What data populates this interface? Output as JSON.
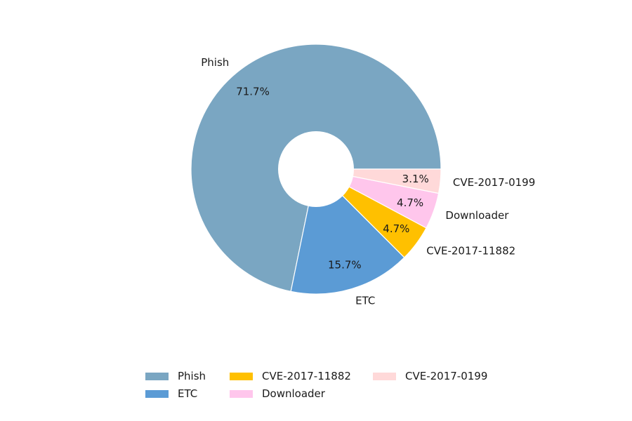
{
  "chart_data": {
    "type": "pie",
    "donut": true,
    "title": "",
    "slices": [
      {
        "label": "Phish",
        "value": 71.7,
        "pct_label": "71.7%",
        "color": "#7aa6c2"
      },
      {
        "label": "ETC",
        "value": 15.7,
        "pct_label": "15.7%",
        "color": "#5b9bd5"
      },
      {
        "label": "CVE-2017-11882",
        "value": 4.7,
        "pct_label": "4.7%",
        "color": "#ffc000"
      },
      {
        "label": "Downloader",
        "value": 4.7,
        "pct_label": "4.7%",
        "color": "#ffc6ec"
      },
      {
        "label": "CVE-2017-0199",
        "value": 3.1,
        "pct_label": "3.1%",
        "color": "#ffd9d9"
      }
    ],
    "start_angle_deg": 0,
    "direction": "counterclockwise",
    "legend": {
      "position": "bottom-center",
      "columns": 3,
      "items": [
        "Phish",
        "ETC",
        "CVE-2017-11882",
        "Downloader",
        "CVE-2017-0199"
      ]
    }
  }
}
